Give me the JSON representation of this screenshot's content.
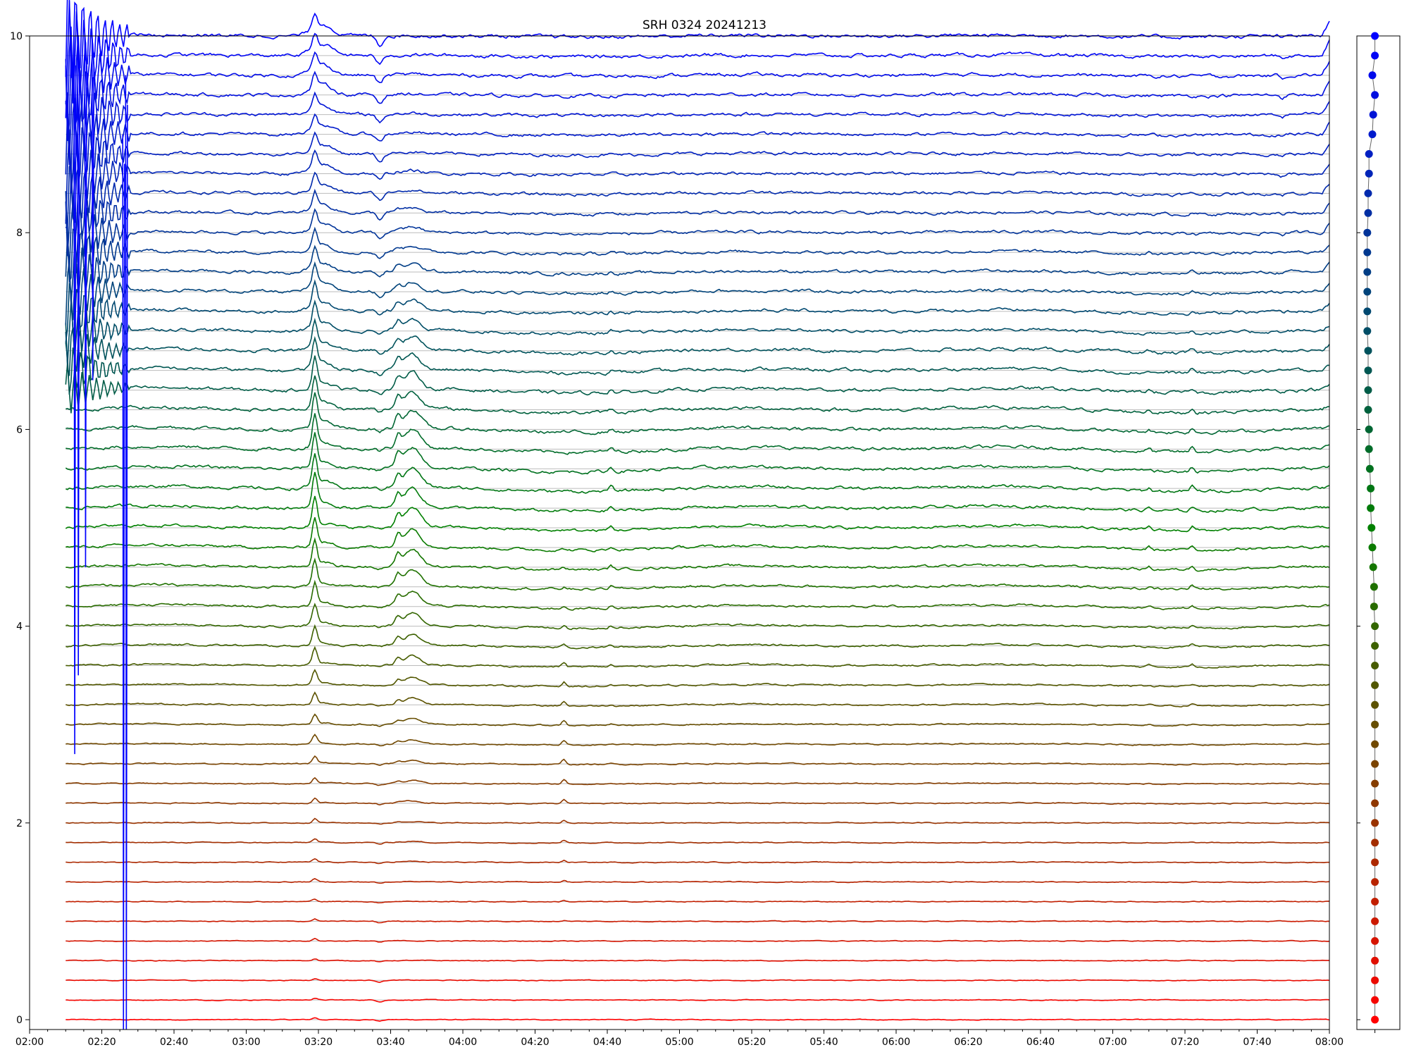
{
  "chart_data": {
    "type": "line",
    "title": "SRH 0324 20241213",
    "xlabel": "",
    "ylabel": "",
    "x_ticks": [
      "02:00",
      "02:20",
      "02:40",
      "03:00",
      "03:20",
      "03:40",
      "04:00",
      "04:20",
      "04:40",
      "05:00",
      "05:20",
      "05:40",
      "06:00",
      "06:20",
      "06:40",
      "07:00",
      "07:20",
      "07:40",
      "08:00"
    ],
    "x_range_minutes": [
      0,
      360
    ],
    "y_ticks": [
      "0",
      "2",
      "4",
      "6",
      "8",
      "10"
    ],
    "ylim": [
      -0.1,
      10
    ],
    "grid": "horizontal baseline per channel",
    "n_channels": 51,
    "channel_spacing": 0.2,
    "color_low": "#ff0000",
    "color_mid": "#008000",
    "color_high": "#0000ff",
    "events_minutes": [
      79,
      97,
      101,
      104,
      148,
      161,
      260,
      270,
      310,
      322,
      347,
      358
    ],
    "dispersion_offsets": [
      0.0,
      0.0,
      0.0,
      0.0,
      0.0,
      0.0,
      0.0,
      0.0,
      0.0,
      0.0,
      0.0,
      0.0,
      0.0,
      0.0,
      0.0,
      0.0,
      0.0,
      0.0,
      0.0,
      0.0,
      0.0,
      -0.01,
      -0.01,
      -0.02,
      -0.03,
      -0.04,
      -0.05,
      -0.05,
      -0.06,
      -0.07,
      -0.07,
      -0.08,
      -0.08,
      -0.08,
      -0.08,
      -0.09,
      -0.09,
      -0.09,
      -0.09,
      -0.09,
      -0.09,
      -0.08,
      -0.08,
      -0.07,
      -0.07,
      -0.03,
      -0.02,
      0.0,
      -0.03,
      0.0,
      0.0
    ]
  }
}
